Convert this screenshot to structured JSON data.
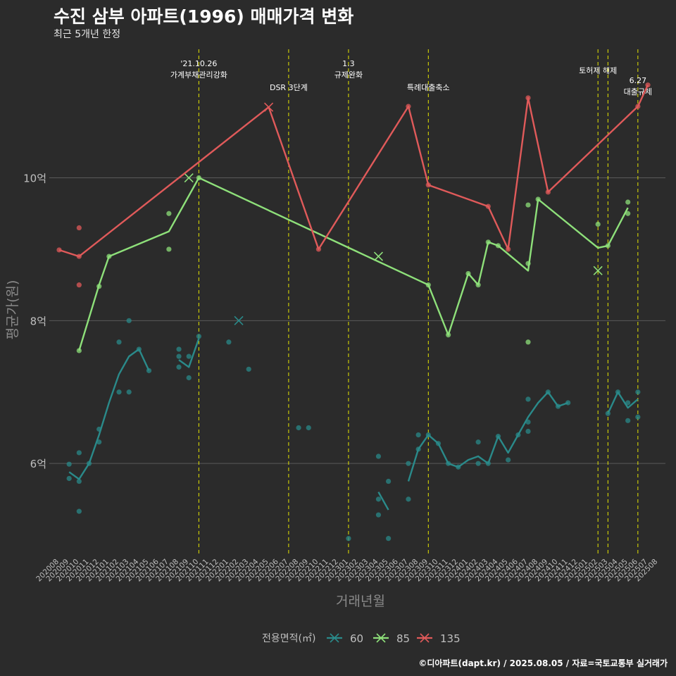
{
  "title": "수진 삼부 아파트(1996) 매매가격 변화",
  "subtitle": "최근 5개년 한정",
  "footer": "©디아파트(dapt.kr) / 2025.08.05 / 자료=국토교통부 실거래가",
  "colors": {
    "background": "#2b2b2b",
    "grid": "#5a5a5a",
    "event_line": "#e6e600",
    "axis_text": "#bfbfbf",
    "s60": "#2a8a8a",
    "s85": "#8ee07a",
    "s135": "#e05a5a"
  },
  "chart_data": {
    "type": "line",
    "xlabel": "거래년월",
    "ylabel": "평균가(원)",
    "x": [
      "202008",
      "202009",
      "202010",
      "202011",
      "202012",
      "202101",
      "202102",
      "202103",
      "202104",
      "202105",
      "202106",
      "202107",
      "202108",
      "202109",
      "202110",
      "202111",
      "202112",
      "202201",
      "202202",
      "202203",
      "202204",
      "202205",
      "202206",
      "202207",
      "202208",
      "202209",
      "202210",
      "202211",
      "202212",
      "202301",
      "202302",
      "202303",
      "202304",
      "202305",
      "202306",
      "202307",
      "202308",
      "202309",
      "202310",
      "202311",
      "202312",
      "202401",
      "202402",
      "202403",
      "202404",
      "202405",
      "202406",
      "202407",
      "202408",
      "202409",
      "202410",
      "202411",
      "202412",
      "202501",
      "202502",
      "202503",
      "202504",
      "202505",
      "202506",
      "202507",
      "202508"
    ],
    "ylim": [
      4.7,
      11.8
    ],
    "yticks": [
      {
        "value": 6,
        "label": "6억"
      },
      {
        "value": 8,
        "label": "8억"
      },
      {
        "value": 10,
        "label": "10억"
      }
    ],
    "grid": true,
    "legend": {
      "title": "전용면적(㎡)",
      "position": "bottom",
      "items": [
        {
          "label": "60",
          "color": "#2a8a8a"
        },
        {
          "label": "85",
          "color": "#8ee07a"
        },
        {
          "label": "135",
          "color": "#e05a5a"
        }
      ]
    },
    "series": [
      {
        "name": "60",
        "color": "#2a8a8a",
        "segments": [
          [
            [
              "202009",
              5.88
            ],
            [
              "202010",
              5.78
            ],
            [
              "202011",
              6.0
            ],
            [
              "202012",
              6.4
            ],
            [
              "202101",
              6.85
            ],
            [
              "202102",
              7.25
            ],
            [
              "202103",
              7.5
            ],
            [
              "202104",
              7.6
            ],
            [
              "202105",
              7.3
            ]
          ],
          [
            [
              "202108",
              7.45
            ],
            [
              "202109",
              7.35
            ],
            [
              "202110",
              7.75
            ]
          ],
          [
            [
              "202304",
              5.6
            ],
            [
              "202305",
              5.35
            ]
          ],
          [
            [
              "202307",
              5.75
            ],
            [
              "202308",
              6.2
            ],
            [
              "202309",
              6.4
            ],
            [
              "202310",
              6.28
            ],
            [
              "202311",
              6.0
            ],
            [
              "202312",
              5.95
            ],
            [
              "202401",
              6.05
            ],
            [
              "202402",
              6.1
            ],
            [
              "202403",
              6.0
            ],
            [
              "202404",
              6.38
            ],
            [
              "202405",
              6.15
            ],
            [
              "202406",
              6.4
            ],
            [
              "202407",
              6.65
            ],
            [
              "202408",
              6.85
            ],
            [
              "202409",
              7.0
            ],
            [
              "202410",
              6.8
            ],
            [
              "202411",
              6.85
            ]
          ],
          [
            [
              "202503",
              6.7
            ],
            [
              "202504",
              7.0
            ],
            [
              "202505",
              6.78
            ],
            [
              "202506",
              6.9
            ]
          ]
        ],
        "points": [
          [
            "202009",
            5.99
          ],
          [
            "202009",
            5.79
          ],
          [
            "202010",
            6.15
          ],
          [
            "202010",
            5.75
          ],
          [
            "202010",
            5.33
          ],
          [
            "202011",
            6.0
          ],
          [
            "202012",
            6.48
          ],
          [
            "202012",
            6.3
          ],
          [
            "202102",
            7.7
          ],
          [
            "202102",
            7.0
          ],
          [
            "202103",
            8.0
          ],
          [
            "202103",
            7.0
          ],
          [
            "202104",
            7.6
          ],
          [
            "202105",
            7.3
          ],
          [
            "202108",
            7.6
          ],
          [
            "202108",
            7.5
          ],
          [
            "202108",
            7.35
          ],
          [
            "202109",
            7.5
          ],
          [
            "202109",
            7.2
          ],
          [
            "202110",
            7.78
          ],
          [
            "202201",
            7.7
          ],
          [
            "202203",
            7.32
          ],
          [
            "202208",
            6.5
          ],
          [
            "202209",
            6.5
          ],
          [
            "202301",
            4.95
          ],
          [
            "202304",
            6.1
          ],
          [
            "202304",
            5.5
          ],
          [
            "202304",
            5.28
          ],
          [
            "202305",
            5.75
          ],
          [
            "202305",
            4.95
          ],
          [
            "202307",
            6.0
          ],
          [
            "202307",
            5.5
          ],
          [
            "202308",
            6.4
          ],
          [
            "202308",
            6.2
          ],
          [
            "202309",
            6.4
          ],
          [
            "202310",
            6.28
          ],
          [
            "202311",
            6.0
          ],
          [
            "202312",
            5.95
          ],
          [
            "202402",
            6.3
          ],
          [
            "202402",
            6.0
          ],
          [
            "202403",
            6.0
          ],
          [
            "202404",
            6.38
          ],
          [
            "202405",
            6.05
          ],
          [
            "202406",
            6.4
          ],
          [
            "202407",
            6.9
          ],
          [
            "202407",
            6.58
          ],
          [
            "202407",
            6.45
          ],
          [
            "202409",
            7.0
          ],
          [
            "202410",
            6.8
          ],
          [
            "202411",
            6.85
          ],
          [
            "202503",
            6.7
          ],
          [
            "202504",
            7.0
          ],
          [
            "202505",
            6.85
          ],
          [
            "202505",
            6.6
          ],
          [
            "202506",
            7.0
          ],
          [
            "202506",
            6.65
          ]
        ],
        "x_marks": [
          [
            "202202",
            8.0
          ]
        ]
      },
      {
        "name": "85",
        "color": "#8ee07a",
        "segments": [
          [
            [
              "202010",
              7.58
            ],
            [
              "202012",
              8.5
            ],
            [
              "202101",
              8.9
            ],
            [
              "202107",
              9.25
            ],
            [
              "202110",
              10.0
            ],
            [
              "202309",
              8.5
            ],
            [
              "202311",
              7.8
            ],
            [
              "202401",
              8.66
            ],
            [
              "202402",
              8.5
            ],
            [
              "202403",
              9.1
            ],
            [
              "202404",
              9.05
            ],
            [
              "202407",
              8.7
            ],
            [
              "202408",
              9.7
            ],
            [
              "202502",
              9.02
            ],
            [
              "202503",
              9.05
            ],
            [
              "202505",
              9.58
            ]
          ]
        ],
        "points": [
          [
            "202010",
            7.58
          ],
          [
            "202012",
            8.48
          ],
          [
            "202101",
            8.9
          ],
          [
            "202107",
            9.5
          ],
          [
            "202107",
            9.0
          ],
          [
            "202110",
            10.0
          ],
          [
            "202309",
            8.5
          ],
          [
            "202311",
            7.8
          ],
          [
            "202401",
            8.66
          ],
          [
            "202402",
            8.5
          ],
          [
            "202403",
            9.1
          ],
          [
            "202404",
            9.05
          ],
          [
            "202407",
            9.62
          ],
          [
            "202407",
            8.8
          ],
          [
            "202407",
            7.7
          ],
          [
            "202408",
            9.7
          ],
          [
            "202502",
            9.35
          ],
          [
            "202503",
            9.05
          ],
          [
            "202505",
            9.66
          ],
          [
            "202505",
            9.5
          ]
        ],
        "x_marks": [
          [
            "202109",
            10.0
          ],
          [
            "202304",
            8.9
          ],
          [
            "202502",
            8.7
          ]
        ]
      },
      {
        "name": "135",
        "color": "#e05a5a",
        "segments": [
          [
            [
              "202008",
              8.99
            ],
            [
              "202010",
              8.9
            ],
            [
              "202205",
              10.99
            ],
            [
              "202210",
              9.0
            ],
            [
              "202307",
              11.0
            ],
            [
              "202309",
              9.9
            ],
            [
              "202403",
              9.6
            ],
            [
              "202405",
              9.0
            ],
            [
              "202407",
              11.12
            ],
            [
              "202409",
              9.8
            ],
            [
              "202506",
              11.0
            ],
            [
              "202507",
              11.3
            ]
          ]
        ],
        "points": [
          [
            "202008",
            8.99
          ],
          [
            "202010",
            9.3
          ],
          [
            "202010",
            8.9
          ],
          [
            "202010",
            8.5
          ],
          [
            "202210",
            9.0
          ],
          [
            "202307",
            11.0
          ],
          [
            "202309",
            9.9
          ],
          [
            "202403",
            9.6
          ],
          [
            "202405",
            9.0
          ],
          [
            "202407",
            11.12
          ],
          [
            "202409",
            9.8
          ],
          [
            "202506",
            11.0
          ],
          [
            "202507",
            11.3
          ]
        ],
        "x_marks": [
          [
            "202205",
            10.99
          ]
        ]
      }
    ],
    "annotations": [
      {
        "x": "202110",
        "lines": [
          "'21.10.26",
          "가계부채관리강화"
        ]
      },
      {
        "x": "202207",
        "lines": [
          "DSR 3단계"
        ]
      },
      {
        "x": "202301",
        "lines": [
          "1.3",
          "규제완화"
        ]
      },
      {
        "x": "202309",
        "lines": [
          "특례대출축소"
        ]
      },
      {
        "x": "202502",
        "lines": [
          "토허제 해제"
        ]
      },
      {
        "x": "202503",
        "lines": [
          ""
        ]
      },
      {
        "x": "202506",
        "lines": [
          "6.27",
          "대출규제"
        ]
      }
    ]
  }
}
